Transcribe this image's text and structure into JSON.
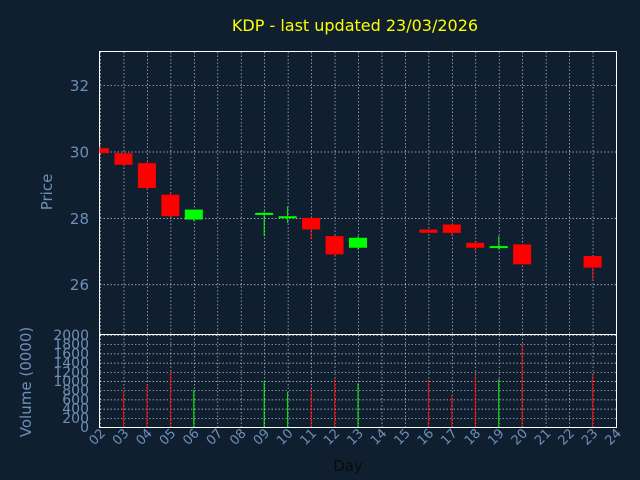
{
  "chart_data": {
    "type": "candlestick",
    "title": "KDP - last updated 23/03/2026",
    "price_panel": {
      "ylabel": "Price",
      "ylim": [
        24.5,
        33.0
      ],
      "yticks": [
        26,
        28,
        30,
        32
      ],
      "grid": true
    },
    "volume_panel": {
      "ylabel": "Volume (0000)",
      "ylim": [
        0,
        2000
      ],
      "yticks": [
        0,
        200,
        400,
        600,
        800,
        1000,
        1200,
        1400,
        1600,
        1800,
        2000
      ],
      "grid": true
    },
    "xlabel": "Day",
    "xlim": [
      2,
      24
    ],
    "x_ticks": [
      "02",
      "03",
      "04",
      "05",
      "06",
      "07",
      "08",
      "09",
      "10",
      "11",
      "12",
      "13",
      "14",
      "15",
      "16",
      "17",
      "18",
      "19",
      "20",
      "21",
      "22",
      "23",
      "24"
    ],
    "colors": {
      "up": "#00ff00",
      "down": "#ff0000",
      "title": "#ffff00",
      "axis_text": "#6f8fb8",
      "grid": "#ffffff",
      "background": "#0f1f30"
    },
    "candles": [
      {
        "day": 2,
        "open": 30.1,
        "high": 30.15,
        "low": 29.95,
        "close": 29.95,
        "volume": 0
      },
      {
        "day": 3,
        "open": 29.95,
        "high": 29.95,
        "low": 29.55,
        "close": 29.6,
        "volume": 780
      },
      {
        "day": 4,
        "open": 29.65,
        "high": 29.7,
        "low": 28.85,
        "close": 28.9,
        "volume": 920
      },
      {
        "day": 5,
        "open": 28.7,
        "high": 28.75,
        "low": 28.0,
        "close": 28.05,
        "volume": 1200
      },
      {
        "day": 6,
        "open": 27.95,
        "high": 28.25,
        "low": 27.9,
        "close": 28.25,
        "volume": 800
      },
      {
        "day": 9,
        "open": 28.1,
        "high": 28.2,
        "low": 27.45,
        "close": 28.15,
        "volume": 1000
      },
      {
        "day": 10,
        "open": 28.0,
        "high": 28.35,
        "low": 27.85,
        "close": 28.05,
        "volume": 760
      },
      {
        "day": 11,
        "open": 28.0,
        "high": 28.0,
        "low": 27.35,
        "close": 27.65,
        "volume": 840
      },
      {
        "day": 12,
        "open": 27.45,
        "high": 27.5,
        "low": 26.85,
        "close": 26.9,
        "volume": 1050
      },
      {
        "day": 13,
        "open": 27.1,
        "high": 27.45,
        "low": 27.05,
        "close": 27.4,
        "volume": 950
      },
      {
        "day": 16,
        "open": 27.65,
        "high": 27.65,
        "low": 27.55,
        "close": 27.55,
        "volume": 1020
      },
      {
        "day": 17,
        "open": 27.8,
        "high": 27.8,
        "low": 27.45,
        "close": 27.55,
        "volume": 700
      },
      {
        "day": 18,
        "open": 27.25,
        "high": 27.25,
        "low": 27.0,
        "close": 27.1,
        "volume": 1130
      },
      {
        "day": 19,
        "open": 27.1,
        "high": 27.45,
        "low": 27.05,
        "close": 27.15,
        "volume": 1040
      },
      {
        "day": 20,
        "open": 27.2,
        "high": 27.2,
        "low": 26.6,
        "close": 26.6,
        "volume": 1800
      },
      {
        "day": 23,
        "open": 26.85,
        "high": 26.85,
        "low": 26.15,
        "close": 26.5,
        "volume": 1130
      }
    ]
  }
}
